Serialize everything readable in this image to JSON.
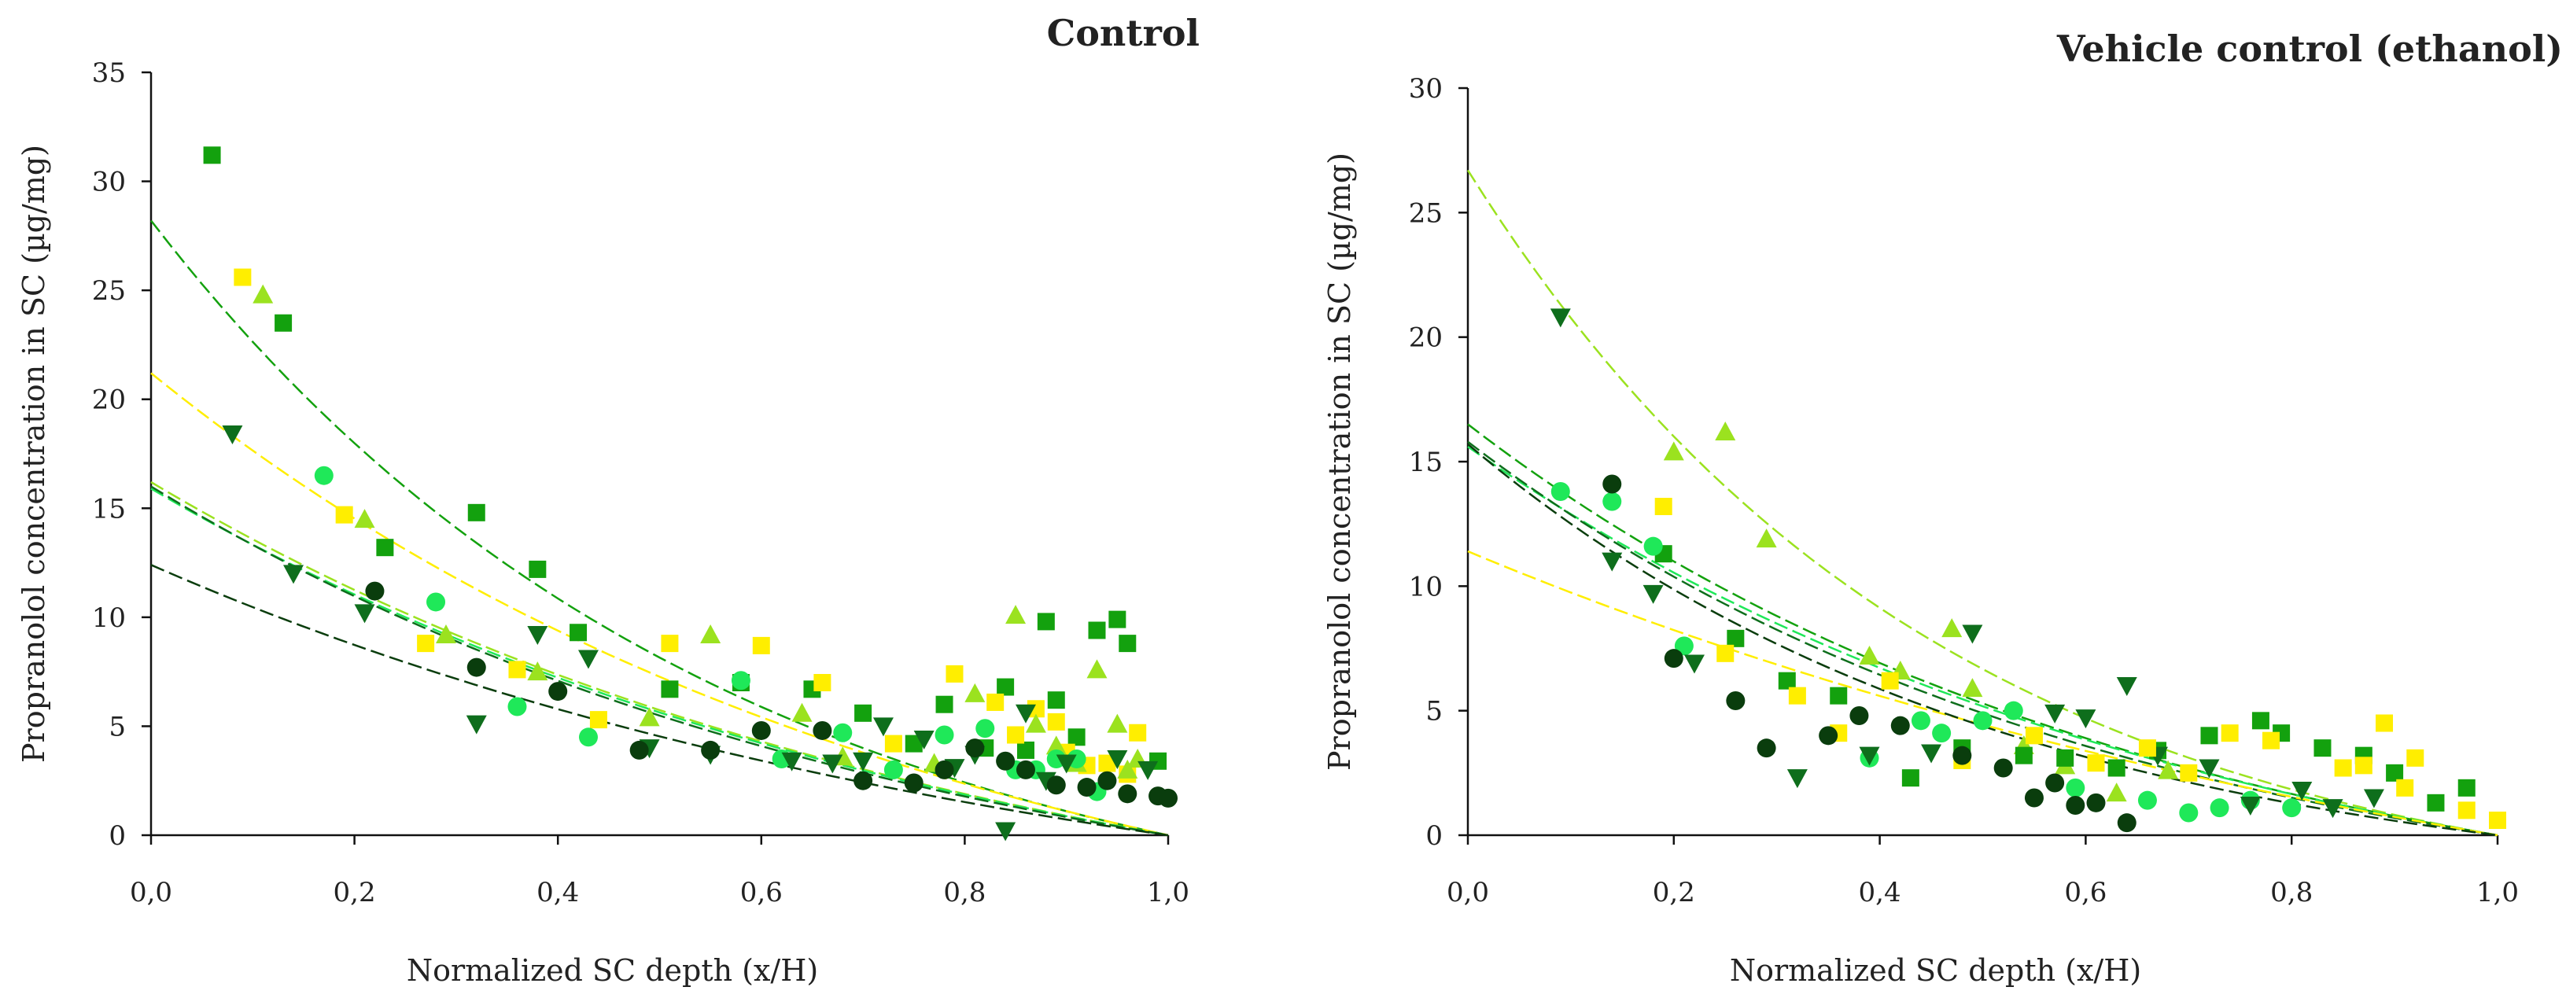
{
  "chart_data": [
    {
      "type": "scatter",
      "title": "Control",
      "xlabel": "Normalized SC depth (x/H)",
      "ylabel": "Propranolol concentration in SC (µg/mg)",
      "xlim": [
        0,
        1
      ],
      "ylim": [
        0,
        35
      ],
      "xticks": [
        "0,0",
        "0,2",
        "0,4",
        "0,6",
        "0,8",
        "1,0"
      ],
      "xtick_values": [
        0,
        0.2,
        0.4,
        0.6,
        0.8,
        1.0
      ],
      "yticks": [
        "0",
        "5",
        "10",
        "15",
        "20",
        "25",
        "30",
        "35"
      ],
      "ytick_values": [
        0,
        5,
        10,
        15,
        20,
        25,
        30,
        35
      ],
      "grid": false,
      "series": [
        {
          "color": "#13a10e",
          "marker": "square",
          "trend": [
            28.2,
            1.8
          ],
          "x": [
            0.06,
            0.13,
            0.23,
            0.32,
            0.38,
            0.42,
            0.51,
            0.58,
            0.65,
            0.7,
            0.75,
            0.78,
            0.82,
            0.84,
            0.86,
            0.88,
            0.89,
            0.91,
            0.93,
            0.95,
            0.96,
            0.99
          ],
          "y": [
            31.2,
            23.5,
            13.2,
            14.8,
            12.2,
            9.3,
            6.7,
            7.0,
            6.7,
            5.6,
            4.2,
            6.0,
            4.0,
            6.8,
            3.9,
            9.8,
            6.2,
            4.5,
            9.4,
            9.9,
            8.8,
            3.4
          ]
        },
        {
          "color": "#ffee00",
          "marker": "square",
          "trend": [
            21.2,
            1.3
          ],
          "x": [
            0.09,
            0.19,
            0.27,
            0.36,
            0.44,
            0.51,
            0.6,
            0.66,
            0.73,
            0.79,
            0.83,
            0.85,
            0.87,
            0.89,
            0.9,
            0.92,
            0.94,
            0.96,
            0.97
          ],
          "y": [
            25.6,
            14.7,
            8.8,
            7.6,
            5.3,
            8.8,
            8.7,
            7.0,
            4.2,
            7.4,
            6.1,
            4.6,
            5.8,
            5.2,
            3.8,
            3.2,
            3.3,
            2.8,
            4.7
          ]
        },
        {
          "color": "#9be21f",
          "marker": "triangle",
          "trend": [
            16.2,
            1.2
          ],
          "x": [
            0.11,
            0.21,
            0.29,
            0.38,
            0.49,
            0.55,
            0.64,
            0.68,
            0.77,
            0.81,
            0.85,
            0.87,
            0.89,
            0.91,
            0.93,
            0.95,
            0.96,
            0.97
          ],
          "y": [
            24.8,
            14.5,
            9.2,
            7.5,
            5.4,
            9.2,
            5.6,
            3.6,
            3.3,
            6.5,
            10.1,
            5.1,
            4.1,
            3.3,
            7.6,
            5.1,
            3.0,
            3.5
          ]
        },
        {
          "color": "#1fe859",
          "marker": "circle",
          "trend": [
            15.9,
            1.2
          ],
          "x": [
            0.17,
            0.28,
            0.36,
            0.43,
            0.58,
            0.62,
            0.68,
            0.73,
            0.78,
            0.82,
            0.85,
            0.87,
            0.89,
            0.91,
            0.93
          ],
          "y": [
            16.5,
            10.7,
            5.9,
            4.5,
            7.1,
            3.5,
            4.7,
            3.0,
            4.6,
            4.9,
            3.0,
            3.0,
            3.5,
            3.5,
            2.0
          ]
        },
        {
          "color": "#0e6e1c",
          "marker": "triangle-down",
          "trend": [
            16.0,
            1.3
          ],
          "x": [
            0.08,
            0.14,
            0.21,
            0.32,
            0.38,
            0.43,
            0.49,
            0.55,
            0.63,
            0.67,
            0.7,
            0.72,
            0.76,
            0.79,
            0.81,
            0.84,
            0.86,
            0.88,
            0.9,
            0.95,
            0.98
          ],
          "y": [
            18.4,
            12.0,
            10.2,
            5.1,
            9.2,
            8.1,
            4.0,
            3.7,
            3.4,
            3.3,
            3.4,
            5.0,
            4.4,
            3.1,
            3.7,
            0.2,
            5.6,
            2.5,
            3.3,
            3.5,
            3.0
          ]
        },
        {
          "color": "#0a3d0d",
          "marker": "circle",
          "trend": [
            12.4,
            1.1
          ],
          "x": [
            0.22,
            0.32,
            0.4,
            0.48,
            0.55,
            0.6,
            0.66,
            0.7,
            0.75,
            0.78,
            0.81,
            0.84,
            0.86,
            0.89,
            0.92,
            0.94,
            0.96,
            0.99,
            1.0
          ],
          "y": [
            11.2,
            7.7,
            6.6,
            3.9,
            3.9,
            4.8,
            4.8,
            2.5,
            2.4,
            3.0,
            4.0,
            3.4,
            3.0,
            2.3,
            2.2,
            2.5,
            1.9,
            1.8,
            1.7
          ]
        }
      ]
    },
    {
      "type": "scatter",
      "title": "Vehicle control (ethanol)",
      "xlabel": "Normalized SC depth (x/H)",
      "ylabel": "Propranolol concentration in SC (µg/mg)",
      "xlim": [
        0,
        1
      ],
      "ylim": [
        0,
        30
      ],
      "xticks": [
        "0,0",
        "0,2",
        "0,4",
        "0,6",
        "0,8",
        "1,0"
      ],
      "xtick_values": [
        0,
        0.2,
        0.4,
        0.6,
        0.8,
        1.0
      ],
      "yticks": [
        "0",
        "5",
        "10",
        "15",
        "20",
        "25",
        "30"
      ],
      "ytick_values": [
        0,
        5,
        10,
        15,
        20,
        25,
        30
      ],
      "grid": false,
      "series": [
        {
          "color": "#9be21f",
          "marker": "triangle",
          "trend": [
            26.7,
            2.2
          ],
          "x": [
            0.2,
            0.25,
            0.29,
            0.39,
            0.42,
            0.47,
            0.49,
            0.54,
            0.58,
            0.63,
            0.68
          ],
          "y": [
            15.4,
            16.2,
            11.9,
            7.2,
            6.6,
            8.3,
            5.9,
            3.6,
            2.8,
            1.7,
            2.6
          ]
        },
        {
          "color": "#13a10e",
          "marker": "square",
          "trend": [
            16.5,
            1.5
          ],
          "x": [
            0.19,
            0.26,
            0.31,
            0.36,
            0.43,
            0.48,
            0.54,
            0.58,
            0.63,
            0.67,
            0.72,
            0.77,
            0.79,
            0.83,
            0.87,
            0.9,
            0.94,
            0.97
          ],
          "y": [
            11.3,
            7.9,
            6.2,
            5.6,
            2.3,
            3.5,
            3.2,
            3.1,
            2.7,
            3.4,
            4.0,
            4.6,
            4.1,
            3.5,
            3.2,
            2.5,
            1.3,
            1.9
          ]
        },
        {
          "color": "#1fe859",
          "marker": "circle",
          "trend": [
            15.6,
            1.4
          ],
          "x": [
            0.09,
            0.14,
            0.18,
            0.21,
            0.39,
            0.44,
            0.46,
            0.5,
            0.53,
            0.59,
            0.66,
            0.7,
            0.73,
            0.76,
            0.8
          ],
          "y": [
            13.8,
            13.4,
            11.6,
            7.6,
            3.1,
            4.6,
            4.1,
            4.6,
            5.0,
            1.9,
            1.4,
            0.9,
            1.1,
            1.4,
            1.1
          ]
        },
        {
          "color": "#0e6e1c",
          "marker": "triangle-down",
          "trend": [
            15.8,
            1.6
          ],
          "x": [
            0.09,
            0.14,
            0.18,
            0.22,
            0.32,
            0.39,
            0.45,
            0.49,
            0.57,
            0.6,
            0.64,
            0.67,
            0.72,
            0.76,
            0.81,
            0.84,
            0.88
          ],
          "y": [
            20.8,
            11.0,
            9.7,
            6.9,
            2.3,
            3.2,
            3.3,
            8.1,
            4.9,
            4.7,
            6.0,
            3.2,
            2.7,
            1.2,
            1.8,
            1.1,
            1.5
          ]
        },
        {
          "color": "#ffee00",
          "marker": "square",
          "trend": [
            11.4,
            0.9
          ],
          "x": [
            0.19,
            0.25,
            0.32,
            0.36,
            0.41,
            0.48,
            0.55,
            0.61,
            0.66,
            0.7,
            0.74,
            0.78,
            0.85,
            0.87,
            0.89,
            0.91,
            0.92,
            0.97,
            1.0
          ],
          "y": [
            13.2,
            7.3,
            5.6,
            4.1,
            6.2,
            3.0,
            4.0,
            2.9,
            3.5,
            2.5,
            4.1,
            3.8,
            2.7,
            2.8,
            4.5,
            1.9,
            3.1,
            1.0,
            0.6
          ]
        },
        {
          "color": "#0a3d0d",
          "marker": "circle",
          "trend": [
            15.7,
            1.9
          ],
          "x": [
            0.14,
            0.2,
            0.26,
            0.29,
            0.35,
            0.38,
            0.42,
            0.48,
            0.52,
            0.55,
            0.57,
            0.59,
            0.61,
            0.64
          ],
          "y": [
            14.1,
            7.1,
            5.4,
            3.5,
            4.0,
            4.8,
            4.4,
            3.2,
            2.7,
            1.5,
            2.1,
            1.2,
            1.3,
            0.5
          ]
        }
      ]
    }
  ]
}
